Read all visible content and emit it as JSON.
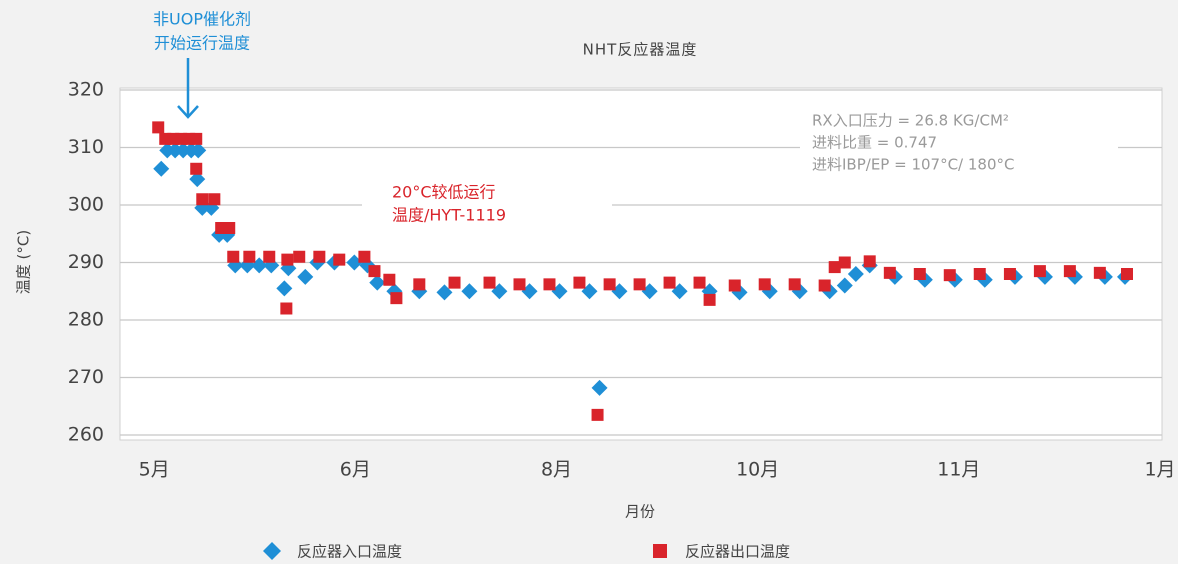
{
  "chart_data": {
    "type": "scatter",
    "title": "NHT反应器温度",
    "xlabel": "月份",
    "ylabel": "温度 (°C)",
    "xlim": [
      -0.17,
      5.01
    ],
    "xticks": [
      {
        "value": 0,
        "label": "5月"
      },
      {
        "value": 1,
        "label": "6月"
      },
      {
        "value": 2,
        "label": "8月"
      },
      {
        "value": 3,
        "label": "10月"
      },
      {
        "value": 4,
        "label": "11月"
      },
      {
        "value": 5,
        "label": "1月"
      }
    ],
    "ylim": [
      260,
      320
    ],
    "yticks": [
      260,
      270,
      280,
      290,
      300,
      310,
      320
    ],
    "grid": true,
    "legend": "bottom",
    "annotations": [
      {
        "lines": [
          "非UOP催化剂",
          "开始运行温度"
        ],
        "color": "#1f8fd6"
      },
      {
        "lines": [
          "20°C较低运行",
          "温度/HYT-1119"
        ],
        "color": "#d9242b"
      },
      {
        "lines": [
          "RX入口压力 = 26.8 KG/CM²",
          "进料比重 = 0.747",
          "进料IBP/EP = 107°C/ 180°C"
        ],
        "color": "#9a9a9a"
      }
    ],
    "series": [
      {
        "name": "反应器入口温度",
        "color": "#1f8fd6",
        "marker": "diamond",
        "x": [
          0.035,
          0.065,
          0.104,
          0.144,
          0.184,
          0.219,
          0.214,
          0.239,
          0.284,
          0.323,
          0.363,
          0.403,
          0.463,
          0.522,
          0.582,
          0.647,
          0.667,
          0.751,
          0.811,
          0.896,
          0.995,
          1.06,
          1.109,
          1.194,
          1.318,
          1.443,
          1.567,
          1.716,
          1.866,
          2.015,
          2.164,
          2.214,
          2.313,
          2.463,
          2.612,
          2.761,
          2.91,
          3.06,
          3.209,
          3.358,
          3.433,
          3.488,
          3.557,
          3.682,
          3.831,
          3.98,
          4.129,
          4.279,
          4.428,
          4.577,
          4.726,
          4.826
        ],
        "values": [
          306.3,
          309.5,
          309.5,
          309.5,
          309.5,
          309.5,
          304.5,
          299.5,
          299.5,
          294.8,
          294.8,
          289.5,
          289.5,
          289.5,
          289.5,
          285.5,
          289,
          287.5,
          290,
          290,
          290,
          289.5,
          286.5,
          285,
          285,
          284.8,
          285,
          285,
          285,
          285,
          285,
          268.2,
          285,
          285,
          285,
          285,
          284.8,
          285,
          285,
          285,
          286,
          288,
          289.5,
          287.5,
          287,
          287,
          287,
          287.5,
          287.5,
          287.5,
          287.5,
          287.5
        ]
      },
      {
        "name": "反应器出口温度",
        "color": "#d9242b",
        "marker": "square",
        "x": [
          0.02,
          0.055,
          0.095,
          0.134,
          0.174,
          0.209,
          0.209,
          0.239,
          0.299,
          0.333,
          0.373,
          0.393,
          0.473,
          0.572,
          0.657,
          0.662,
          0.721,
          0.821,
          0.92,
          1.045,
          1.095,
          1.169,
          1.204,
          1.318,
          1.493,
          1.667,
          1.816,
          1.965,
          2.114,
          2.204,
          2.264,
          2.413,
          2.562,
          2.711,
          2.761,
          2.886,
          3.035,
          3.184,
          3.333,
          3.383,
          3.433,
          3.557,
          3.657,
          3.806,
          3.955,
          4.104,
          4.254,
          4.403,
          4.552,
          4.701,
          4.836
        ],
        "values": [
          313.5,
          311.5,
          311.5,
          311.5,
          311.5,
          311.5,
          306.3,
          301,
          301,
          296,
          296,
          291,
          291,
          291,
          282,
          290.5,
          291,
          291,
          290.5,
          291,
          288.5,
          287,
          283.8,
          286.2,
          286.5,
          286.5,
          286.2,
          286.2,
          286.5,
          263.5,
          286.2,
          286.2,
          286.5,
          286.5,
          283.5,
          286,
          286.2,
          286.2,
          286,
          289.2,
          290,
          290.2,
          288.2,
          288,
          287.8,
          288,
          288,
          288.5,
          288.5,
          288.2,
          288
        ]
      }
    ]
  }
}
